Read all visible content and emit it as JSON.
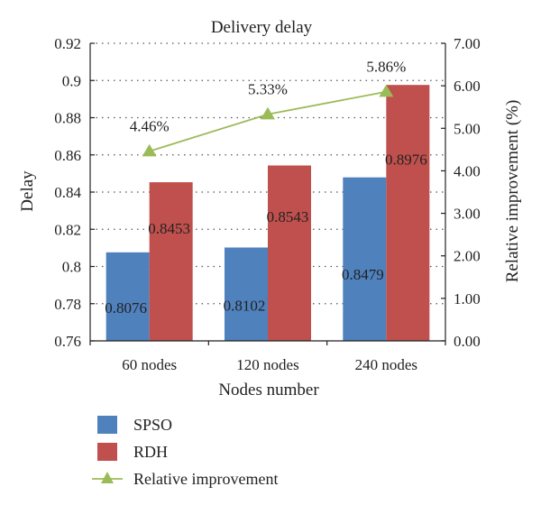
{
  "chart_data": {
    "type": "bar",
    "title": "Delivery delay",
    "xlabel": "Nodes number",
    "ylabel": "Delay",
    "y2label": "Relative improvement (%)",
    "categories": [
      "60 nodes",
      "120 nodes",
      "240 nodes"
    ],
    "ylim": [
      0.76,
      0.92
    ],
    "y_ticks": [
      "0.76",
      "0.78",
      "0.8",
      "0.82",
      "0.84",
      "0.86",
      "0.88",
      "0.9",
      "0.92"
    ],
    "y2lim": [
      0,
      7
    ],
    "y2_ticks": [
      "0.00",
      "1.00",
      "2.00",
      "3.00",
      "4.00",
      "5.00",
      "6.00",
      "7.00"
    ],
    "grid": "dotted horizontal",
    "legend_position": "bottom",
    "series": [
      {
        "name": "SPSO",
        "kind": "bar",
        "color": "#4f81bd",
        "values": [
          0.8076,
          0.8102,
          0.8479
        ],
        "labels": [
          "0.8076",
          "0.8102",
          "0.8479"
        ]
      },
      {
        "name": "RDH",
        "kind": "bar",
        "color": "#c0504d",
        "values": [
          0.8453,
          0.8543,
          0.8976
        ],
        "labels": [
          "0.8453",
          "0.8543",
          "0.8976"
        ]
      },
      {
        "name": "Relative improvement",
        "kind": "line",
        "axis": "right",
        "color": "#9bbb59",
        "marker": "triangle",
        "values": [
          4.46,
          5.33,
          5.86
        ],
        "labels": [
          "4.46%",
          "5.33%",
          "5.86%"
        ]
      }
    ]
  }
}
